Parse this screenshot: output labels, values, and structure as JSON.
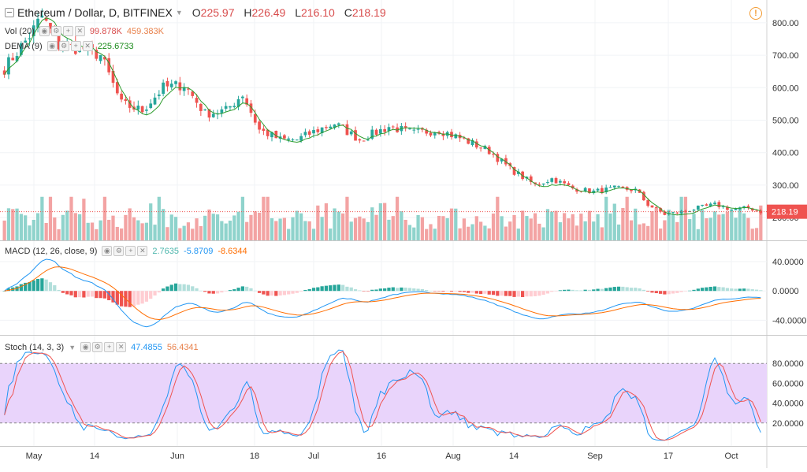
{
  "header": {
    "symbol": "Ethereum / Dollar, D, BITFINEX",
    "open_label": "O",
    "open": "225.97",
    "high_label": "H",
    "high": "226.49",
    "low_label": "L",
    "low": "216.10",
    "close_label": "C",
    "close": "218.19",
    "last_price_tag": "218.19"
  },
  "legends": {
    "vol": {
      "label": "Vol (20)",
      "v1": "99.878K",
      "v2": "459.383K"
    },
    "dema": {
      "label": "DEMA (9)",
      "v1": "225.6733"
    },
    "macd": {
      "label": "MACD (12, 26, close, 9)",
      "v1": "2.7635",
      "v2": "-5.8709",
      "v3": "-8.6344"
    },
    "stoch": {
      "label": "Stoch (14, 3, 3)",
      "v1": "47.4855",
      "v2": "56.4341"
    }
  },
  "colors": {
    "up": "#26a69a",
    "down": "#ef5350",
    "up_vol": "#8fd3cc",
    "down_vol": "#f3a3a3",
    "macd_line": "#2196f3",
    "signal_line": "#ff6d00",
    "k_line": "#2196f3",
    "d_line": "#ef5350",
    "band_fill": "#e9d4fb"
  },
  "chart_data": {
    "type": "candlestick",
    "title": "Ethereum / Dollar, D, BITFINEX",
    "price_axis": {
      "ticks": [
        "800.00",
        "700.00",
        "600.00",
        "500.00",
        "400.00",
        "300.00",
        "200.00"
      ],
      "range": [
        130,
        870
      ]
    },
    "x_ticks": [
      "May",
      "14",
      "Jun",
      "18",
      "Jul",
      "16",
      "Aug",
      "14",
      "Sep",
      "17",
      "Oct"
    ],
    "anchors": [
      [
        0,
        660
      ],
      [
        6,
        760
      ],
      [
        9,
        820
      ],
      [
        13,
        730
      ],
      [
        19,
        720
      ],
      [
        23,
        700
      ],
      [
        28,
        550
      ],
      [
        33,
        530
      ],
      [
        38,
        600
      ],
      [
        43,
        610
      ],
      [
        48,
        520
      ],
      [
        53,
        530
      ],
      [
        57,
        580
      ],
      [
        61,
        470
      ],
      [
        66,
        440
      ],
      [
        70,
        440
      ],
      [
        75,
        470
      ],
      [
        79,
        490
      ],
      [
        85,
        440
      ],
      [
        92,
        480
      ],
      [
        98,
        460
      ],
      [
        104,
        470
      ],
      [
        110,
        440
      ],
      [
        116,
        405
      ],
      [
        121,
        350
      ],
      [
        127,
        300
      ],
      [
        131,
        320
      ],
      [
        136,
        290
      ],
      [
        141,
        280
      ],
      [
        146,
        290
      ],
      [
        151,
        285
      ],
      [
        154,
        240
      ],
      [
        158,
        210
      ],
      [
        162,
        218
      ],
      [
        166,
        230
      ],
      [
        170,
        240
      ],
      [
        174,
        225
      ],
      [
        178,
        230
      ],
      [
        181,
        218
      ]
    ],
    "macd": {
      "ticks": [
        "40.0000",
        "0.0000",
        "-40.0000"
      ],
      "range": [
        -60,
        68
      ]
    },
    "stoch": {
      "ticks": [
        "80.0000",
        "60.0000",
        "40.0000",
        "20.0000"
      ],
      "range": [
        0,
        100
      ],
      "upper_band": 80,
      "lower_band": 20
    }
  }
}
